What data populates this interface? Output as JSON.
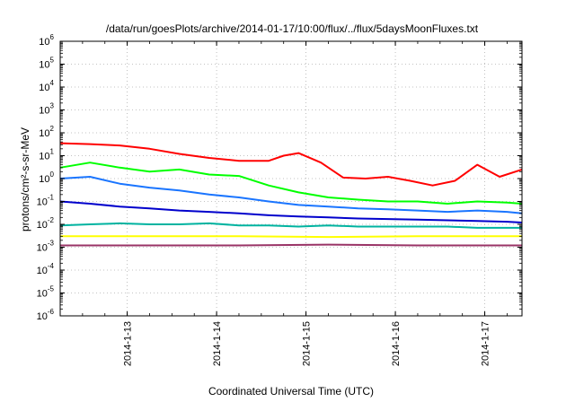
{
  "chart_data": {
    "type": "line",
    "title": "/data/run/goesPlots/archive/2014-01-17/10:00/flux/../flux/5daysMoonFluxes.txt",
    "xlabel": "Coordinated Universal Time (UTC)",
    "ylabel": "protons/cm²-s-sr-MeV",
    "yscale": "log",
    "ylim": [
      1e-06,
      1000000.0
    ],
    "xlim": [
      "2014-01-12 06:00",
      "2014-01-17 10:00"
    ],
    "x_ticks": [
      "2014-1-13",
      "2014-1-14",
      "2014-1-15",
      "2014-1-16",
      "2014-1-17"
    ],
    "y_ticks": [
      {
        "base": "10",
        "exp": "-6",
        "value": 1e-06
      },
      {
        "base": "10",
        "exp": "-5",
        "value": 1e-05
      },
      {
        "base": "10",
        "exp": "-4",
        "value": 0.0001
      },
      {
        "base": "10",
        "exp": "-3",
        "value": 0.001
      },
      {
        "base": "10",
        "exp": "-2",
        "value": 0.01
      },
      {
        "base": "10",
        "exp": "-1",
        "value": 0.1
      },
      {
        "base": "10",
        "exp": "0",
        "value": 1
      },
      {
        "base": "10",
        "exp": "1",
        "value": 10
      },
      {
        "base": "10",
        "exp": "2",
        "value": 100
      },
      {
        "base": "10",
        "exp": "3",
        "value": 1000
      },
      {
        "base": "10",
        "exp": "4",
        "value": 10000
      },
      {
        "base": "10",
        "exp": "5",
        "value": 100000
      },
      {
        "base": "10",
        "exp": "6",
        "value": 1000000
      }
    ],
    "grid": true,
    "series": [
      {
        "color": "#ff0000",
        "x": [
          "2014-01-12 06:00",
          "2014-01-12 14:00",
          "2014-01-12 22:00",
          "2014-01-13 06:00",
          "2014-01-13 14:00",
          "2014-01-13 22:00",
          "2014-01-14 06:00",
          "2014-01-14 14:00",
          "2014-01-14 18:00",
          "2014-01-14 22:00",
          "2014-01-15 04:00",
          "2014-01-15 10:00",
          "2014-01-15 16:00",
          "2014-01-15 22:00",
          "2014-01-16 04:00",
          "2014-01-16 10:00",
          "2014-01-16 16:00",
          "2014-01-16 22:00",
          "2014-01-17 04:00",
          "2014-01-17 10:00"
        ],
        "y": [
          35,
          32,
          28,
          20,
          12,
          8,
          6,
          6,
          10,
          13,
          5,
          1.1,
          1.0,
          1.2,
          0.8,
          0.5,
          0.8,
          4,
          1.2,
          2.5
        ]
      },
      {
        "color": "#00ff00",
        "x": [
          "2014-01-12 06:00",
          "2014-01-12 14:00",
          "2014-01-12 22:00",
          "2014-01-13 06:00",
          "2014-01-13 14:00",
          "2014-01-13 22:00",
          "2014-01-14 06:00",
          "2014-01-14 14:00",
          "2014-01-14 22:00",
          "2014-01-15 06:00",
          "2014-01-15 14:00",
          "2014-01-15 22:00",
          "2014-01-16 06:00",
          "2014-01-16 14:00",
          "2014-01-16 22:00",
          "2014-01-17 06:00",
          "2014-01-17 10:00"
        ],
        "y": [
          3,
          5,
          3,
          2,
          2.5,
          1.5,
          1.3,
          0.5,
          0.25,
          0.15,
          0.12,
          0.1,
          0.1,
          0.08,
          0.1,
          0.09,
          0.08
        ]
      },
      {
        "color": "#1a75ff",
        "x": [
          "2014-01-12 06:00",
          "2014-01-12 14:00",
          "2014-01-12 22:00",
          "2014-01-13 06:00",
          "2014-01-13 14:00",
          "2014-01-13 22:00",
          "2014-01-14 06:00",
          "2014-01-14 14:00",
          "2014-01-14 22:00",
          "2014-01-15 06:00",
          "2014-01-15 14:00",
          "2014-01-15 22:00",
          "2014-01-16 06:00",
          "2014-01-16 14:00",
          "2014-01-16 22:00",
          "2014-01-17 06:00",
          "2014-01-17 10:00"
        ],
        "y": [
          1.0,
          1.2,
          0.6,
          0.4,
          0.3,
          0.2,
          0.15,
          0.1,
          0.07,
          0.06,
          0.05,
          0.045,
          0.04,
          0.035,
          0.04,
          0.035,
          0.03
        ]
      },
      {
        "color": "#0000cc",
        "x": [
          "2014-01-12 06:00",
          "2014-01-12 14:00",
          "2014-01-12 22:00",
          "2014-01-13 06:00",
          "2014-01-13 14:00",
          "2014-01-13 22:00",
          "2014-01-14 06:00",
          "2014-01-14 14:00",
          "2014-01-14 22:00",
          "2014-01-15 06:00",
          "2014-01-15 14:00",
          "2014-01-15 22:00",
          "2014-01-16 06:00",
          "2014-01-16 14:00",
          "2014-01-16 22:00",
          "2014-01-17 06:00",
          "2014-01-17 10:00"
        ],
        "y": [
          0.1,
          0.08,
          0.06,
          0.05,
          0.04,
          0.035,
          0.03,
          0.025,
          0.022,
          0.02,
          0.018,
          0.017,
          0.016,
          0.015,
          0.014,
          0.013,
          0.012
        ]
      },
      {
        "color": "#00b3a0",
        "x": [
          "2014-01-12 06:00",
          "2014-01-12 14:00",
          "2014-01-12 22:00",
          "2014-01-13 06:00",
          "2014-01-13 14:00",
          "2014-01-13 22:00",
          "2014-01-14 06:00",
          "2014-01-14 14:00",
          "2014-01-14 22:00",
          "2014-01-15 06:00",
          "2014-01-15 14:00",
          "2014-01-15 22:00",
          "2014-01-16 06:00",
          "2014-01-16 14:00",
          "2014-01-16 22:00",
          "2014-01-17 06:00",
          "2014-01-17 10:00"
        ],
        "y": [
          0.009,
          0.01,
          0.011,
          0.01,
          0.01,
          0.011,
          0.009,
          0.009,
          0.008,
          0.009,
          0.008,
          0.008,
          0.008,
          0.008,
          0.007,
          0.007,
          0.007
        ]
      },
      {
        "color": "#ffff00",
        "x": [
          "2014-01-12 06:00",
          "2014-01-13 06:00",
          "2014-01-14 06:00",
          "2014-01-15 06:00",
          "2014-01-16 06:00",
          "2014-01-17 06:00",
          "2014-01-17 10:00"
        ],
        "y": [
          0.003,
          0.003,
          0.003,
          0.0028,
          0.003,
          0.003,
          0.003
        ]
      },
      {
        "color": "#993366",
        "x": [
          "2014-01-12 06:00",
          "2014-01-13 06:00",
          "2014-01-14 06:00",
          "2014-01-15 06:00",
          "2014-01-16 06:00",
          "2014-01-17 06:00",
          "2014-01-17 10:00"
        ],
        "y": [
          0.0012,
          0.0012,
          0.0012,
          0.0013,
          0.0012,
          0.0012,
          0.0012
        ]
      }
    ]
  }
}
